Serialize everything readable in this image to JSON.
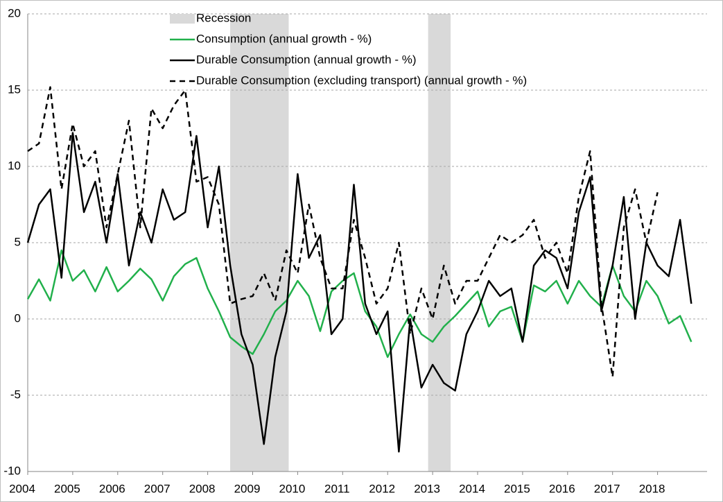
{
  "chart_data": {
    "type": "line",
    "recession_label": "Recession",
    "recession_color": "#d9d9d9",
    "recessions": [
      {
        "start": 2008.5,
        "end": 2009.8
      },
      {
        "start": 2012.9,
        "end": 2013.4
      }
    ],
    "x": [
      2004.0,
      2004.25,
      2004.5,
      2004.75,
      2005.0,
      2005.25,
      2005.5,
      2005.75,
      2006.0,
      2006.25,
      2006.5,
      2006.75,
      2007.0,
      2007.25,
      2007.5,
      2007.75,
      2008.0,
      2008.25,
      2008.5,
      2008.75,
      2009.0,
      2009.25,
      2009.5,
      2009.75,
      2010.0,
      2010.25,
      2010.5,
      2010.75,
      2011.0,
      2011.25,
      2011.5,
      2011.75,
      2012.0,
      2012.25,
      2012.5,
      2012.75,
      2013.0,
      2013.25,
      2013.5,
      2013.75,
      2014.0,
      2014.25,
      2014.5,
      2014.75,
      2015.0,
      2015.25,
      2015.5,
      2015.75,
      2016.0,
      2016.25,
      2016.5,
      2016.75,
      2017.0,
      2017.25,
      2017.5,
      2017.75,
      2018.0,
      2018.25,
      2018.5,
      2018.75
    ],
    "series": [
      {
        "name": "Consumption (annual growth - %)",
        "color": "#21b04b",
        "dash": false,
        "values": [
          1.3,
          2.6,
          1.2,
          4.5,
          2.5,
          3.2,
          1.8,
          3.4,
          1.8,
          2.5,
          3.3,
          2.6,
          1.2,
          2.8,
          3.6,
          4.0,
          2.0,
          0.5,
          -1.2,
          -1.8,
          -2.3,
          -1.0,
          0.5,
          1.2,
          2.5,
          1.5,
          -0.8,
          1.8,
          2.5,
          3.0,
          0.5,
          -0.5,
          -2.5,
          -1.0,
          0.3,
          -1.0,
          -1.5,
          -0.5,
          0.2,
          1.0,
          1.8,
          -0.5,
          0.5,
          0.8,
          -1.5,
          2.2,
          1.8,
          2.5,
          1.0,
          2.5,
          1.5,
          0.8,
          3.5,
          1.5,
          0.5,
          2.5,
          1.5,
          -0.3,
          0.2,
          -1.5
        ]
      },
      {
        "name": "Durable Consumption (annual growth - %)",
        "color": "#000000",
        "dash": false,
        "values": [
          5.0,
          7.5,
          8.5,
          2.7,
          12.2,
          7.0,
          9.0,
          5.0,
          9.5,
          3.5,
          7.0,
          5.0,
          8.5,
          6.5,
          7.0,
          12.0,
          6.0,
          10.0,
          3.5,
          -1.0,
          -3.0,
          -8.2,
          -2.5,
          0.5,
          9.5,
          4.0,
          5.5,
          -1.0,
          0.0,
          8.8,
          1.0,
          -1.0,
          0.5,
          -8.7,
          0.0,
          -4.5,
          -3.0,
          -4.2,
          -4.7,
          -1.0,
          0.5,
          2.5,
          1.5,
          2.0,
          -1.5,
          3.5,
          4.5,
          4.0,
          2.0,
          7.0,
          9.3,
          0.5,
          3.5,
          8.0,
          0.0,
          5.0,
          3.5,
          2.8,
          6.5,
          1.0
        ]
      },
      {
        "name": "Durable Consumption (excluding transport) (annual growth - %)",
        "color": "#000000",
        "dash": true,
        "values": [
          11.0,
          11.5,
          15.2,
          8.5,
          12.8,
          10.0,
          11.0,
          6.0,
          9.5,
          13.0,
          6.0,
          13.8,
          12.5,
          14.0,
          15.0,
          9.0,
          9.3,
          7.5,
          1.0,
          1.3,
          1.5,
          3.0,
          1.2,
          4.5,
          3.0,
          7.5,
          4.0,
          2.0,
          2.0,
          6.5,
          4.0,
          1.0,
          2.0,
          5.0,
          -1.0,
          2.0,
          0.0,
          3.5,
          1.0,
          2.5,
          2.5,
          4.0,
          5.5,
          5.0,
          5.5,
          6.5,
          4.0,
          5.0,
          3.0,
          8.0,
          11.0,
          1.0,
          -3.8,
          6.0,
          8.5,
          5.0,
          8.3,
          null,
          null,
          null
        ]
      }
    ],
    "xlim": [
      2004,
      2019.1
    ],
    "xticks": [
      2004,
      2005,
      2006,
      2007,
      2008,
      2009,
      2010,
      2011,
      2012,
      2013,
      2014,
      2015,
      2016,
      2017,
      2018
    ],
    "ylim": [
      -10,
      20
    ],
    "yticks": [
      -10,
      -5,
      0,
      5,
      10,
      15,
      20
    ],
    "grid": true
  }
}
